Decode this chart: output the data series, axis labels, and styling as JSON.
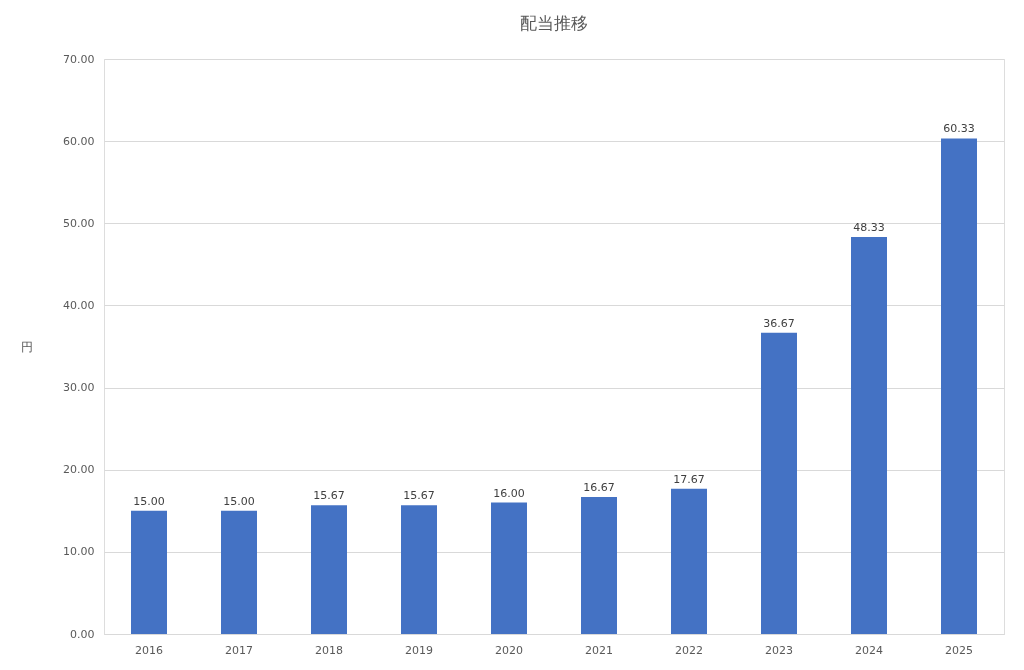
{
  "chart_data": {
    "type": "bar",
    "title": "配当推移",
    "ylabel": "円",
    "categories": [
      "2016",
      "2017",
      "2018",
      "2019",
      "2020",
      "2021",
      "2022",
      "2023",
      "2024",
      "2025"
    ],
    "series": [
      {
        "color": "#4472c4",
        "values": [
          15.0,
          15.0,
          15.67,
          15.67,
          16.0,
          16.67,
          17.67,
          36.67,
          48.33,
          60.33
        ],
        "value_labels": [
          "15.00",
          "15.00",
          "15.67",
          "15.67",
          "16.00",
          "16.67",
          "17.67",
          "36.67",
          "48.33",
          "60.33"
        ]
      }
    ],
    "ylim": [
      0,
      70
    ],
    "yticks": [
      {
        "value": 0,
        "label": "0.00"
      },
      {
        "value": 10,
        "label": "10.00"
      },
      {
        "value": 20,
        "label": "20.00"
      },
      {
        "value": 30,
        "label": "30.00"
      },
      {
        "value": 40,
        "label": "40.00"
      },
      {
        "value": 50,
        "label": "50.00"
      },
      {
        "value": 60,
        "label": "60.00"
      },
      {
        "value": 70,
        "label": "70.00"
      }
    ],
    "grid": "y",
    "legend": false
  }
}
